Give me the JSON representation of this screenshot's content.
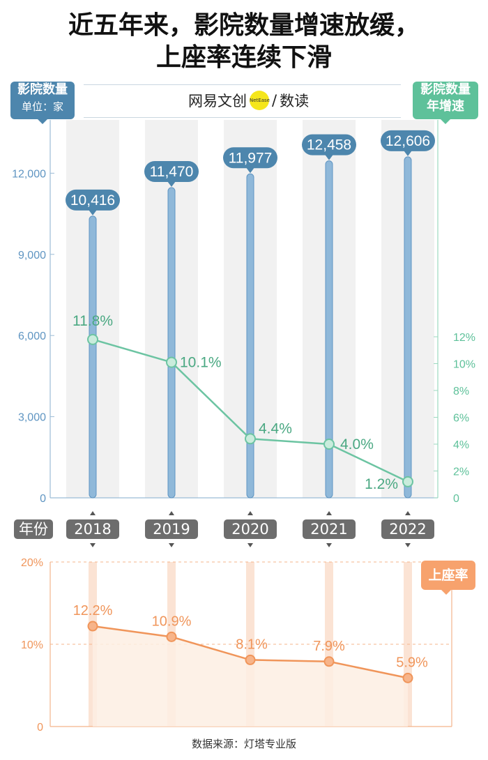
{
  "title": {
    "line1": "近五年来，影院数量增速放缓，",
    "line2": "上座率连续下滑"
  },
  "left_axis_box": {
    "title": "影院数量",
    "subtitle": "单位：家"
  },
  "right_axis_box": {
    "line1": "影院数量",
    "line2": "年增速"
  },
  "brand": {
    "part1": "网易文创",
    "dot_text": "NetEase",
    "slash": "/",
    "part2": "数读"
  },
  "year_label": "年份",
  "occupancy_label": "上座率",
  "source": "数据来源：灯塔专业版",
  "colors": {
    "bar": "#8fb8d9",
    "bar_stroke": "#5f95c2",
    "bar_label_bg": "#4d86ad",
    "growth_line": "#6cc4a2",
    "growth_text": "#4aa882",
    "occupancy": "#f0955a",
    "left_axis_text": "#5f95c2",
    "right_axis_text": "#5ec19a"
  },
  "chart_data": [
    {
      "type": "bar",
      "categories": [
        "2018",
        "2019",
        "2020",
        "2021",
        "2022"
      ],
      "series": [
        {
          "name": "影院数量",
          "values": [
            10416,
            11470,
            11977,
            12458,
            12606
          ]
        }
      ],
      "value_labels": [
        "10,416",
        "11,470",
        "11,977",
        "12,458",
        "12,606"
      ],
      "ylabel": "影院数量 单位：家",
      "ylim": [
        0,
        14000
      ],
      "yticks": [
        0,
        3000,
        6000,
        9000,
        12000
      ],
      "ytick_labels": [
        "0",
        "3,000",
        "6,000",
        "9,000",
        "12,000"
      ],
      "grid": false
    },
    {
      "type": "line",
      "categories": [
        "2018",
        "2019",
        "2020",
        "2021",
        "2022"
      ],
      "series": [
        {
          "name": "影院数量年增速",
          "values": [
            11.8,
            10.1,
            4.4,
            4.0,
            1.2
          ]
        }
      ],
      "value_labels": [
        "11.8%",
        "10.1%",
        "4.4%",
        "4.0%",
        "1.2%"
      ],
      "ylabel": "影院数量 年增速",
      "ylim": [
        0,
        14
      ],
      "yticks": [
        0,
        2,
        4,
        6,
        8,
        10,
        12
      ],
      "ytick_labels": [
        "0",
        "2%",
        "4%",
        "6%",
        "8%",
        "10%",
        "12%"
      ]
    },
    {
      "type": "area",
      "categories": [
        "2018",
        "2019",
        "2020",
        "2021",
        "2022"
      ],
      "series": [
        {
          "name": "上座率",
          "values": [
            12.2,
            10.9,
            8.1,
            7.9,
            5.9
          ]
        }
      ],
      "value_labels": [
        "12.2%",
        "10.9%",
        "8.1%",
        "7.9%",
        "5.9%"
      ],
      "ylim": [
        0,
        20
      ],
      "yticks": [
        0,
        10,
        20
      ],
      "ytick_labels": [
        "0",
        "10%",
        "20%"
      ],
      "grid": true
    }
  ]
}
